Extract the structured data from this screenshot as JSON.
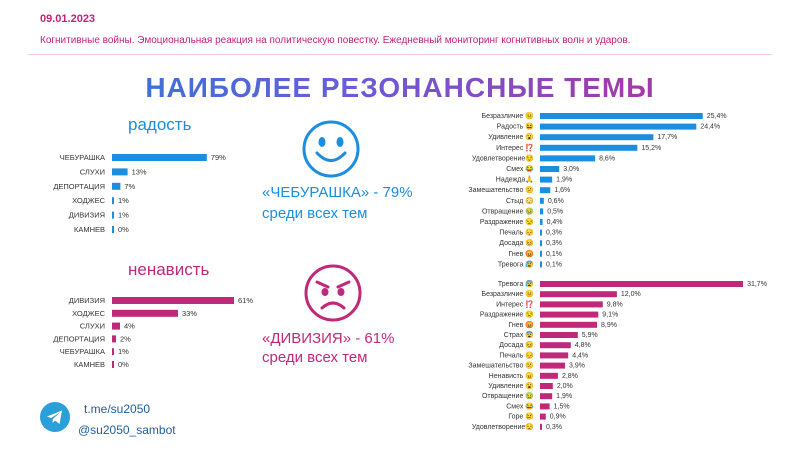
{
  "header": {
    "date": "09.01.2023",
    "subtitle": "Когнитивные войны. Эмоциональная реакция на политическую повестку. Ежедневный мониторинг когнитивных волн и ударов.",
    "title": "НАИБОЛЕЕ РЕЗОНАНСНЫЕ ТЕМЫ"
  },
  "joy": {
    "title": "радость",
    "stat_topic": "«ЧЕБУРАШКА» - 79%",
    "stat_rest": "среди всех тем"
  },
  "hate": {
    "title": "ненависть",
    "stat_topic": "«ДИВИЗИЯ» - 61%",
    "stat_rest": "среди всех тем"
  },
  "footer": {
    "link": "t.me/su2050",
    "handle": "@su2050_sambot"
  },
  "colors": {
    "blue": "#1c8ee0",
    "magenta": "#c0287a"
  },
  "chart_data": [
    {
      "type": "bar",
      "orientation": "horizontal",
      "categories": [
        "ЧЕБУРАШКА",
        "СЛУХИ",
        "ДЕПОРТАЦИЯ",
        "ХОДЖЕС",
        "ДИВИЗИЯ",
        "КАМНЕВ"
      ],
      "values": [
        79,
        13,
        7,
        1,
        1,
        0
      ],
      "value_labels": [
        "79%",
        "13%",
        "7%",
        "1%",
        "1%",
        "0%"
      ],
      "xlim": [
        0,
        100
      ]
    },
    {
      "type": "bar",
      "orientation": "horizontal",
      "categories": [
        "ДИВИЗИЯ",
        "ХОДЖЕС",
        "СЛУХИ",
        "ДЕПОРТАЦИЯ",
        "ЧЕБУРАШКА",
        "КАМНЕВ"
      ],
      "values": [
        61,
        33,
        4,
        2,
        1,
        0
      ],
      "value_labels": [
        "61%",
        "33%",
        "4%",
        "2%",
        "1%",
        "0%"
      ],
      "xlim": [
        0,
        100
      ]
    },
    {
      "type": "bar",
      "orientation": "horizontal",
      "categories": [
        "Безразличие 😐",
        "Радость 😆",
        "Удивление 😮",
        "Интерес ⁉️",
        "Удовлетворение😌",
        "Смех 😂",
        "Надежда🙏",
        "Замешательство 😕",
        "Стыд 😳",
        "Отвращение 🤢",
        "Раздражение 😒",
        "Печаль 😔",
        "Досада 😣",
        "Гнев 😡",
        "Тревога 😰"
      ],
      "values": [
        25.4,
        24.4,
        17.7,
        15.2,
        8.6,
        3.0,
        1.9,
        1.6,
        0.6,
        0.5,
        0.4,
        0.3,
        0.3,
        0.1,
        0.1
      ],
      "value_labels": [
        "25,4%",
        "24,4%",
        "17,7%",
        "15,2%",
        "8,6%",
        "3,0%",
        "1,9%",
        "1,6%",
        "0,6%",
        "0,5%",
        "0,4%",
        "0,3%",
        "0,3%",
        "0,1%",
        "0,1%"
      ],
      "xlim": [
        0,
        32
      ]
    },
    {
      "type": "bar",
      "orientation": "horizontal",
      "categories": [
        "Тревога 😰",
        "Безразличие 😐",
        "Интерес ⁉️",
        "Раздражение 😒",
        "Гнев 😡",
        "Страх 😨",
        "Досада 😣",
        "Печаль 😔",
        "Замешательство 😕",
        "Ненависть 😠",
        "Удивление 😮",
        "Отвращение 🤢",
        "Смех 😂",
        "Горе 😢",
        "Удовлетворение😌"
      ],
      "values": [
        31.7,
        12.0,
        9.8,
        9.1,
        8.9,
        5.9,
        4.8,
        4.4,
        3.9,
        2.8,
        2.0,
        1.9,
        1.5,
        0.9,
        0.3
      ],
      "value_labels": [
        "31,7%",
        "12,0%",
        "9,8%",
        "9,1%",
        "8,9%",
        "5,9%",
        "4,8%",
        "4,4%",
        "3,9%",
        "2,8%",
        "2,0%",
        "1,9%",
        "1,5%",
        "0,9%",
        "0,3%"
      ],
      "xlim": [
        0,
        32
      ]
    }
  ]
}
